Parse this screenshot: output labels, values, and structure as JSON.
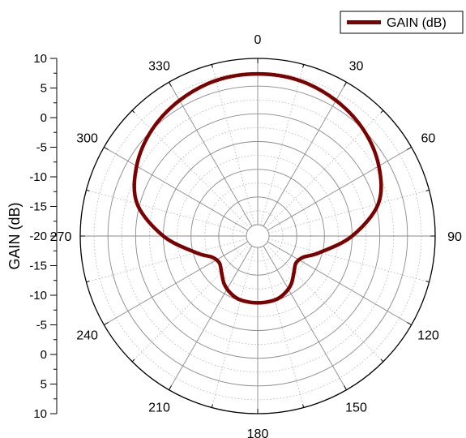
{
  "chart_data": {
    "type": "line",
    "subtype": "polar",
    "title": "",
    "ylabel": "GAIN (dB)",
    "radial_range": [
      -20,
      10
    ],
    "radial_ticks": [
      10,
      5,
      0,
      -5,
      -10,
      -15,
      -20,
      -15,
      -10,
      -5,
      0,
      5,
      10
    ],
    "angular_ticks": [
      0,
      30,
      60,
      90,
      120,
      150,
      180,
      210,
      240,
      270,
      300,
      330
    ],
    "angular_direction": "clockwise",
    "zero_direction": "top",
    "grid": true,
    "legend": {
      "position": "top-right",
      "entries": [
        "GAIN (dB)"
      ]
    },
    "series": [
      {
        "name": "GAIN (dB)",
        "color": "#7b0000",
        "theta": [
          0,
          15,
          30,
          45,
          60,
          75,
          90,
          105,
          115,
          125,
          135,
          145,
          155,
          165,
          180,
          195,
          205,
          215,
          225,
          235,
          245,
          255,
          270,
          285,
          300,
          315,
          330,
          345,
          360
        ],
        "r": [
          7.2,
          7.0,
          6.2,
          5.0,
          3.2,
          0.5,
          -5.0,
          -10.5,
          -13.0,
          -13.6,
          -12.8,
          -11.5,
          -10.6,
          -10.1,
          -10.0,
          -10.1,
          -10.6,
          -11.5,
          -12.8,
          -13.6,
          -13.0,
          -10.5,
          -5.0,
          0.5,
          3.2,
          5.0,
          6.2,
          7.0,
          7.2
        ]
      }
    ]
  }
}
